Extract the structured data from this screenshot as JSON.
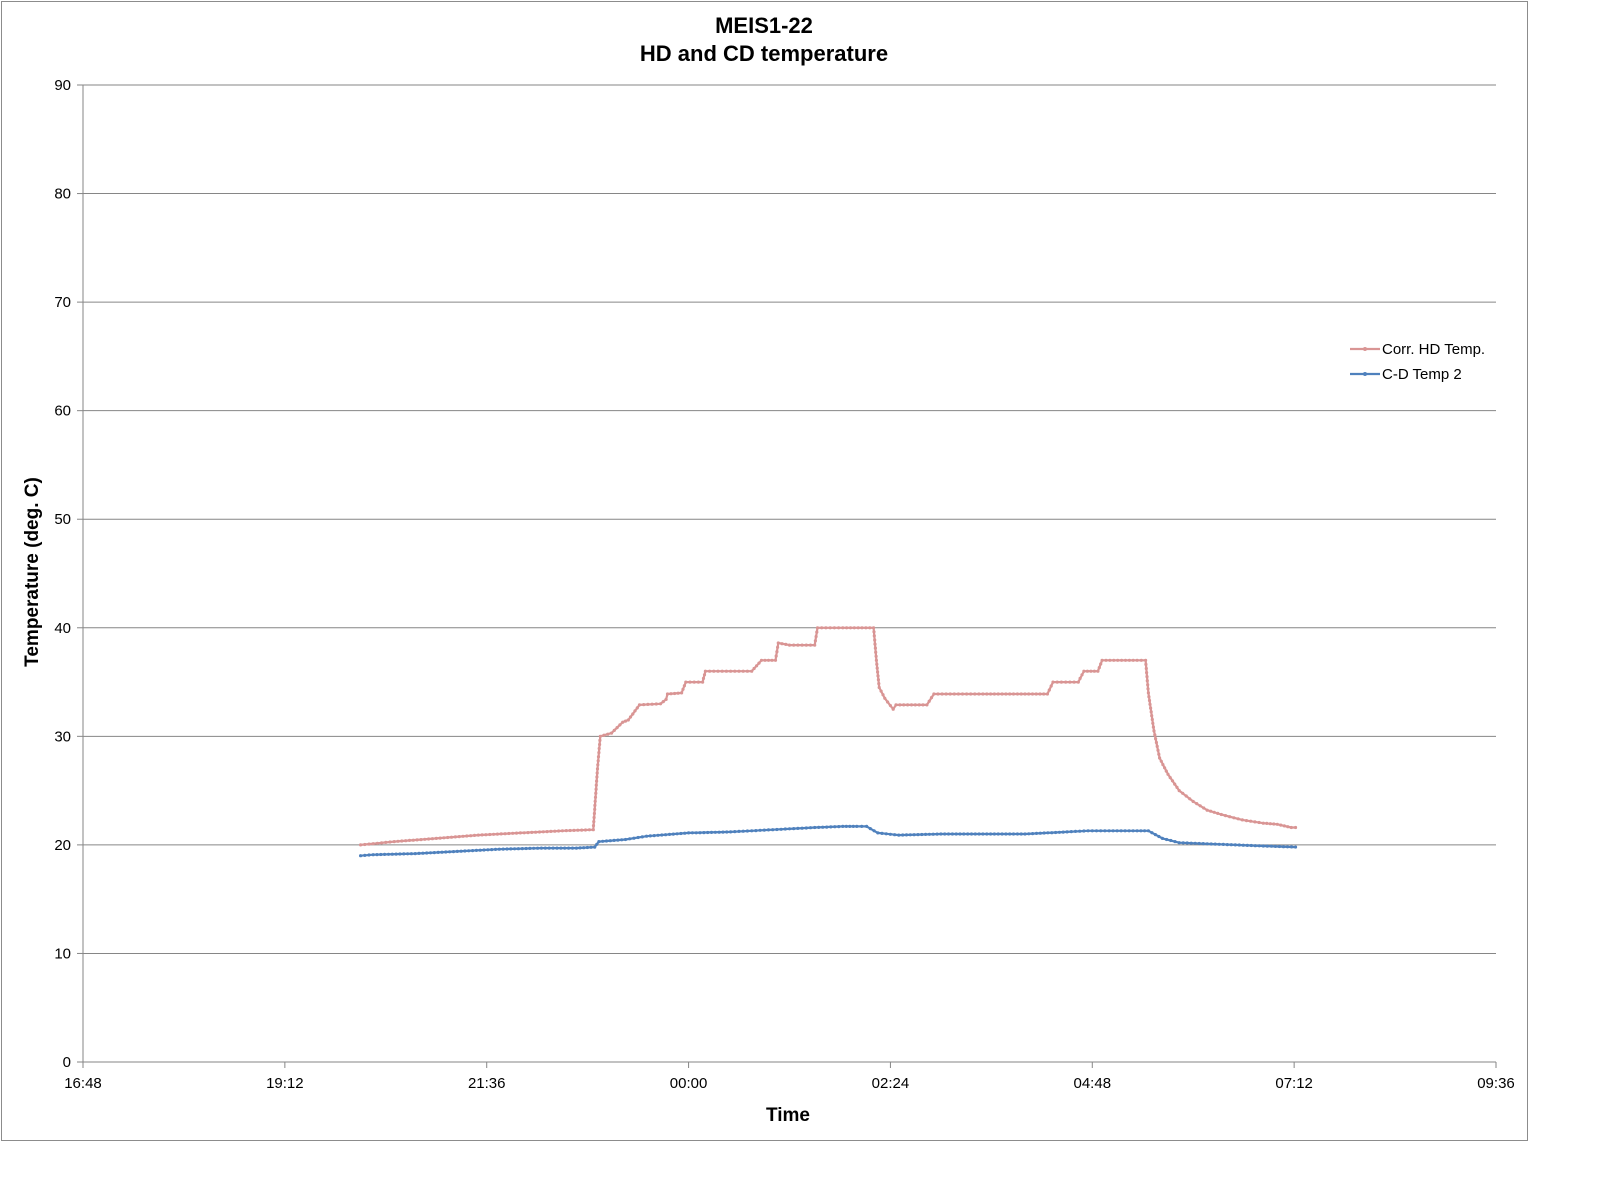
{
  "chart_data": {
    "type": "line",
    "title": "MEIS1-22",
    "subtitle": "HD and CD temperature",
    "xlabel": "Time",
    "ylabel": "Temperature (deg. C)",
    "x_ticks": [
      "16:48",
      "19:12",
      "21:36",
      "00:00",
      "02:24",
      "04:48",
      "07:12",
      "09:36"
    ],
    "xlim": [
      "16:48",
      "09:36"
    ],
    "ylim": [
      0,
      90
    ],
    "y_ticks": [
      0,
      10,
      20,
      30,
      40,
      50,
      60,
      70,
      80,
      90
    ],
    "grid": true,
    "legend_position": "right",
    "series": [
      {
        "name": "Corr. HD Temp.",
        "color": "#d99594",
        "points": [
          [
            "20:06",
            20.0
          ],
          [
            "20:30",
            20.3
          ],
          [
            "21:00",
            20.6
          ],
          [
            "21:30",
            20.9
          ],
          [
            "22:00",
            21.1
          ],
          [
            "22:30",
            21.3
          ],
          [
            "22:52",
            21.4
          ],
          [
            "22:55",
            27.0
          ],
          [
            "22:57",
            30.0
          ],
          [
            "23:05",
            30.3
          ],
          [
            "23:13",
            31.3
          ],
          [
            "23:17",
            31.5
          ],
          [
            "23:25",
            32.9
          ],
          [
            "23:40",
            33.0
          ],
          [
            "23:44",
            33.4
          ],
          [
            "23:45",
            33.9
          ],
          [
            "23:55",
            34.0
          ],
          [
            "23:58",
            35.0
          ],
          [
            "00:10",
            35.0
          ],
          [
            "00:12",
            36.0
          ],
          [
            "00:30",
            36.0
          ],
          [
            "00:45",
            36.0
          ],
          [
            "00:52",
            37.0
          ],
          [
            "01:02",
            37.0
          ],
          [
            "01:04",
            38.6
          ],
          [
            "01:12",
            38.4
          ],
          [
            "01:30",
            38.4
          ],
          [
            "01:32",
            40.0
          ],
          [
            "01:50",
            40.0
          ],
          [
            "02:12",
            40.0
          ],
          [
            "02:14",
            37.0
          ],
          [
            "02:16",
            34.5
          ],
          [
            "02:20",
            33.5
          ],
          [
            "02:26",
            32.5
          ],
          [
            "02:28",
            32.9
          ],
          [
            "02:50",
            32.9
          ],
          [
            "02:55",
            33.9
          ],
          [
            "03:30",
            33.9
          ],
          [
            "04:00",
            33.9
          ],
          [
            "04:16",
            33.9
          ],
          [
            "04:20",
            35.0
          ],
          [
            "04:38",
            35.0
          ],
          [
            "04:42",
            36.0
          ],
          [
            "04:52",
            36.0
          ],
          [
            "04:55",
            37.0
          ],
          [
            "05:20",
            37.0
          ],
          [
            "05:26",
            37.0
          ],
          [
            "05:28",
            34.0
          ],
          [
            "05:32",
            30.5
          ],
          [
            "05:36",
            28.0
          ],
          [
            "05:42",
            26.5
          ],
          [
            "05:50",
            25.0
          ],
          [
            "06:00",
            24.0
          ],
          [
            "06:10",
            23.2
          ],
          [
            "06:20",
            22.8
          ],
          [
            "06:35",
            22.3
          ],
          [
            "06:50",
            22.0
          ],
          [
            "07:00",
            21.9
          ],
          [
            "07:10",
            21.6
          ],
          [
            "07:13",
            21.6
          ]
        ]
      },
      {
        "name": "C-D Temp 2",
        "color": "#4f81bd",
        "points": [
          [
            "20:06",
            19.0
          ],
          [
            "20:15",
            19.1
          ],
          [
            "20:45",
            19.2
          ],
          [
            "21:15",
            19.4
          ],
          [
            "21:45",
            19.6
          ],
          [
            "22:15",
            19.7
          ],
          [
            "22:40",
            19.7
          ],
          [
            "22:53",
            19.8
          ],
          [
            "22:56",
            20.3
          ],
          [
            "23:15",
            20.5
          ],
          [
            "23:30",
            20.8
          ],
          [
            "00:00",
            21.1
          ],
          [
            "00:30",
            21.2
          ],
          [
            "00:45",
            21.3
          ],
          [
            "01:00",
            21.4
          ],
          [
            "01:15",
            21.5
          ],
          [
            "01:30",
            21.6
          ],
          [
            "01:50",
            21.7
          ],
          [
            "02:00",
            21.7
          ],
          [
            "02:07",
            21.7
          ],
          [
            "02:15",
            21.1
          ],
          [
            "02:30",
            20.9
          ],
          [
            "03:00",
            21.0
          ],
          [
            "03:30",
            21.0
          ],
          [
            "04:00",
            21.0
          ],
          [
            "04:30",
            21.2
          ],
          [
            "04:45",
            21.3
          ],
          [
            "05:00",
            21.3
          ],
          [
            "05:20",
            21.3
          ],
          [
            "05:28",
            21.3
          ],
          [
            "05:38",
            20.6
          ],
          [
            "05:50",
            20.2
          ],
          [
            "06:10",
            20.1
          ],
          [
            "06:30",
            20.0
          ],
          [
            "06:50",
            19.9
          ],
          [
            "07:13",
            19.8
          ]
        ]
      }
    ]
  }
}
